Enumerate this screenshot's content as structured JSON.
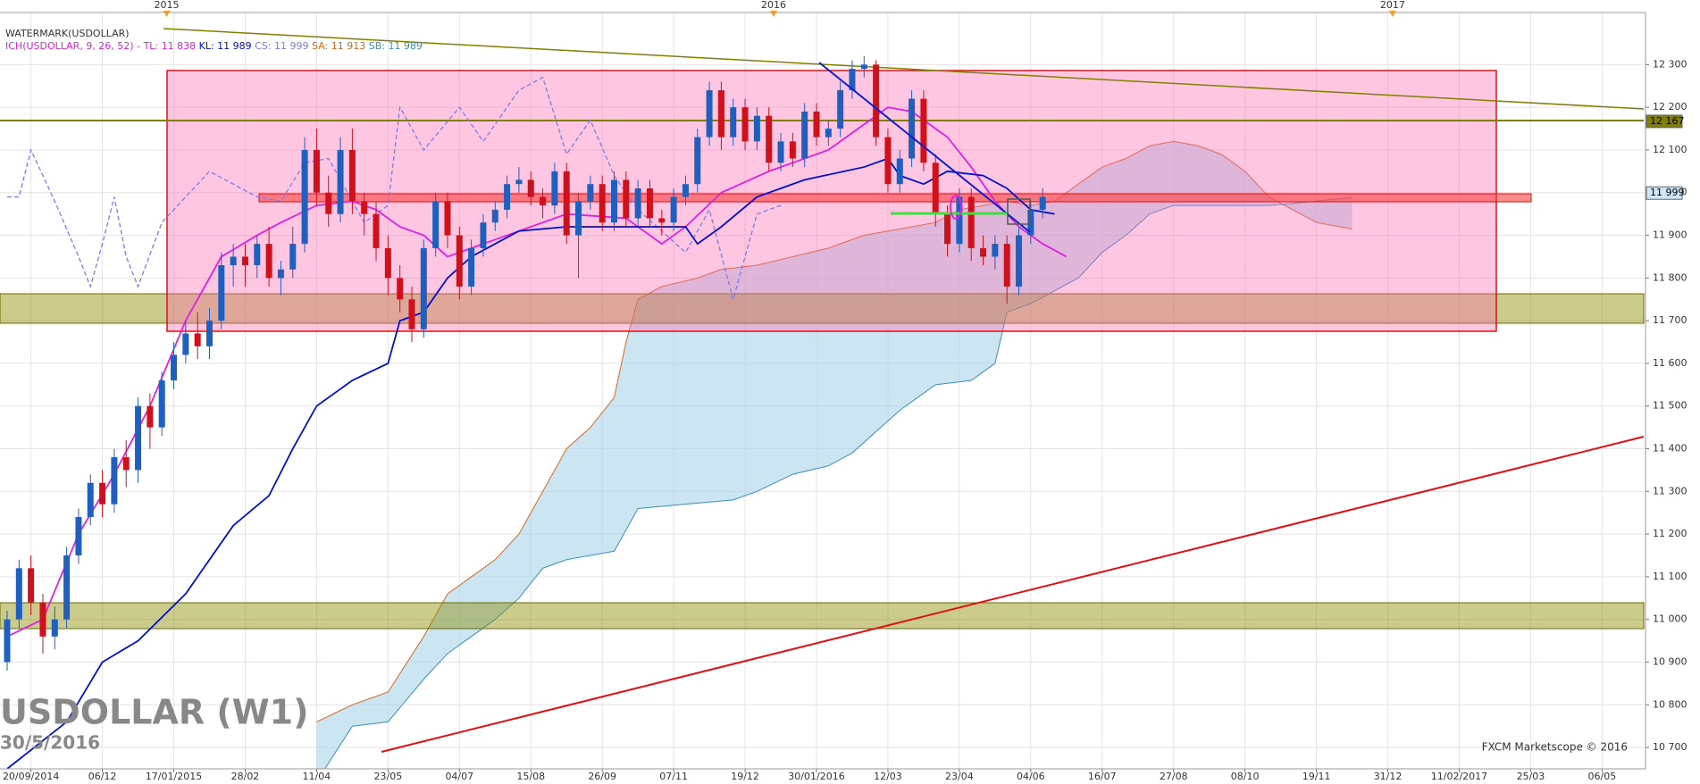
{
  "chart_data": {
    "type": "candlestick",
    "title": "USDOLLAR (W1)",
    "subtitle": "30/5/2016",
    "source": "FXCM Marketscope © 2016",
    "legend": [
      "WATERMARK(USDOLLAR)",
      "ICH(USDOLLAR, 9, 26, 52) -",
      "TL: 11 838",
      "KL: 11 989",
      "CS: 11 999",
      "SA: 11 913",
      "SB: 11 989"
    ],
    "grid": true,
    "xlim": [
      -2.6,
      135.5
    ],
    "xticks": [
      {
        "value": 0,
        "label": "20/09/2014"
      },
      {
        "value": 6,
        "label": "06/12"
      },
      {
        "value": 12,
        "label": "17/01/2015"
      },
      {
        "value": 18,
        "label": "28/02"
      },
      {
        "value": 24,
        "label": "11/04"
      },
      {
        "value": 30,
        "label": "23/05"
      },
      {
        "value": 36,
        "label": "04/07"
      },
      {
        "value": 42,
        "label": "15/08"
      },
      {
        "value": 48,
        "label": "26/09"
      },
      {
        "value": 54,
        "label": "07/11"
      },
      {
        "value": 60,
        "label": "19/12"
      },
      {
        "value": 66,
        "label": "30/01/2016"
      },
      {
        "value": 72,
        "label": "12/03"
      },
      {
        "value": 78,
        "label": "23/04"
      },
      {
        "value": 84,
        "label": "04/06"
      },
      {
        "value": 90,
        "label": "16/07"
      },
      {
        "value": 96,
        "label": "27/08"
      },
      {
        "value": 102,
        "label": "08/10"
      },
      {
        "value": 108,
        "label": "19/11"
      },
      {
        "value": 114,
        "label": "31/12"
      },
      {
        "value": 120,
        "label": "11/02/2017"
      },
      {
        "value": 126,
        "label": "25/03"
      },
      {
        "value": 132,
        "label": "06/05"
      }
    ],
    "year_ticks": [
      {
        "value": 11.4,
        "label": "2015"
      },
      {
        "value": 62.4,
        "label": "2016"
      },
      {
        "value": 114.4,
        "label": "2017"
      }
    ],
    "ylim": [
      10650,
      12420
    ],
    "yticks": [
      {
        "value": 10700,
        "label": "10 700"
      },
      {
        "value": 10800,
        "label": "10 800"
      },
      {
        "value": 10900,
        "label": "10 900"
      },
      {
        "value": 11000,
        "label": "11 000"
      },
      {
        "value": 11100,
        "label": "11 100"
      },
      {
        "value": 11200,
        "label": "11 200"
      },
      {
        "value": 11300,
        "label": "11 300"
      },
      {
        "value": 11400,
        "label": "11 400"
      },
      {
        "value": 11500,
        "label": "11 500"
      },
      {
        "value": 11600,
        "label": "11 600"
      },
      {
        "value": 11700,
        "label": "11 700"
      },
      {
        "value": 11800,
        "label": "11 800"
      },
      {
        "value": 11900,
        "label": "11 900"
      },
      {
        "value": 12000,
        "label": "12 000"
      },
      {
        "value": 12100,
        "label": "12 100"
      },
      {
        "value": 12200,
        "label": "12 200"
      },
      {
        "value": 12300,
        "label": "12 300"
      }
    ],
    "price_markers": [
      {
        "value": 12167,
        "label": "12 167",
        "color": "#808000"
      },
      {
        "value": 11999,
        "label": "11 999",
        "color": "#cfe6f5"
      }
    ],
    "up_color": "#1f5fbf",
    "down_color": "#d0101b",
    "candles": [
      [
        -2,
        10900,
        11020,
        10880,
        11000
      ],
      [
        -1,
        11000,
        11140,
        10980,
        11120
      ],
      [
        0,
        11120,
        11150,
        11010,
        11040
      ],
      [
        1,
        11040,
        11060,
        10920,
        10960
      ],
      [
        2,
        10960,
        11030,
        10930,
        11000
      ],
      [
        3,
        11000,
        11170,
        10980,
        11150
      ],
      [
        4,
        11150,
        11260,
        11130,
        11240
      ],
      [
        5,
        11240,
        11340,
        11220,
        11320
      ],
      [
        6,
        11320,
        11350,
        11240,
        11270
      ],
      [
        7,
        11270,
        11400,
        11250,
        11380
      ],
      [
        8,
        11380,
        11420,
        11310,
        11350
      ],
      [
        9,
        11350,
        11520,
        11320,
        11500
      ],
      [
        10,
        11500,
        11530,
        11400,
        11450
      ],
      [
        11,
        11450,
        11580,
        11430,
        11560
      ],
      [
        12,
        11560,
        11650,
        11540,
        11620
      ],
      [
        13,
        11620,
        11700,
        11600,
        11670
      ],
      [
        14,
        11670,
        11720,
        11610,
        11640
      ],
      [
        15,
        11640,
        11730,
        11610,
        11700
      ],
      [
        16,
        11700,
        11860,
        11680,
        11830
      ],
      [
        17,
        11830,
        11880,
        11780,
        11850
      ],
      [
        18,
        11850,
        11880,
        11780,
        11830
      ],
      [
        19,
        11830,
        11900,
        11800,
        11880
      ],
      [
        20,
        11880,
        11920,
        11780,
        11800
      ],
      [
        21,
        11800,
        11840,
        11760,
        11820
      ],
      [
        22,
        11820,
        11920,
        11800,
        11880
      ],
      [
        23,
        11880,
        12130,
        11860,
        12100
      ],
      [
        24,
        12100,
        12150,
        11970,
        12000
      ],
      [
        25,
        12000,
        12040,
        11920,
        11950
      ],
      [
        26,
        11950,
        12130,
        11930,
        12100
      ],
      [
        27,
        12100,
        12150,
        11950,
        11980
      ],
      [
        28,
        11980,
        12000,
        11900,
        11950
      ],
      [
        29,
        11950,
        11980,
        11840,
        11870
      ],
      [
        30,
        11870,
        11900,
        11760,
        11800
      ],
      [
        31,
        11800,
        11830,
        11720,
        11750
      ],
      [
        32,
        11750,
        11780,
        11650,
        11680
      ],
      [
        33,
        11680,
        11890,
        11660,
        11870
      ],
      [
        34,
        11870,
        12000,
        11850,
        11980
      ],
      [
        35,
        11980,
        12000,
        11870,
        11900
      ],
      [
        36,
        11900,
        11920,
        11750,
        11780
      ],
      [
        37,
        11780,
        11890,
        11760,
        11870
      ],
      [
        38,
        11870,
        11950,
        11850,
        11930
      ],
      [
        39,
        11930,
        11980,
        11910,
        11960
      ],
      [
        40,
        11960,
        12040,
        11940,
        12020
      ],
      [
        41,
        12020,
        12060,
        12000,
        12030
      ],
      [
        42,
        12030,
        12050,
        11970,
        11990
      ],
      [
        43,
        11990,
        12010,
        11940,
        11970
      ],
      [
        44,
        11970,
        12070,
        11950,
        12050
      ],
      [
        45,
        12050,
        12070,
        11880,
        11900
      ],
      [
        46,
        11900,
        12000,
        11800,
        11980
      ],
      [
        47,
        11980,
        12040,
        11960,
        12020
      ],
      [
        48,
        12020,
        12040,
        11910,
        11930
      ],
      [
        49,
        11930,
        12050,
        11910,
        12030
      ],
      [
        50,
        12030,
        12050,
        11920,
        11940
      ],
      [
        51,
        11940,
        12030,
        11920,
        12010
      ],
      [
        52,
        12010,
        12030,
        11920,
        11940
      ],
      [
        53,
        11940,
        11960,
        11900,
        11930
      ],
      [
        54,
        11930,
        12010,
        11910,
        11990
      ],
      [
        55,
        11990,
        12040,
        11970,
        12020
      ],
      [
        56,
        12020,
        12150,
        12000,
        12130
      ],
      [
        57,
        12130,
        12260,
        12110,
        12240
      ],
      [
        58,
        12240,
        12260,
        12100,
        12130
      ],
      [
        59,
        12130,
        12220,
        12110,
        12200
      ],
      [
        60,
        12200,
        12220,
        12100,
        12120
      ],
      [
        61,
        12120,
        12200,
        12100,
        12180
      ],
      [
        62,
        12180,
        12200,
        12050,
        12070
      ],
      [
        63,
        12070,
        12140,
        12050,
        12120
      ],
      [
        64,
        12120,
        12140,
        12060,
        12080
      ],
      [
        65,
        12080,
        12210,
        12060,
        12190
      ],
      [
        66,
        12190,
        12210,
        12110,
        12130
      ],
      [
        67,
        12130,
        12170,
        12110,
        12150
      ],
      [
        68,
        12150,
        12260,
        12130,
        12240
      ],
      [
        69,
        12240,
        12310,
        12220,
        12290
      ],
      [
        70,
        12290,
        12320,
        12270,
        12300
      ],
      [
        71,
        12300,
        12310,
        12110,
        12130
      ],
      [
        72,
        12130,
        12150,
        12000,
        12020
      ],
      [
        73,
        12020,
        12100,
        12000,
        12080
      ],
      [
        74,
        12080,
        12240,
        12060,
        12220
      ],
      [
        75,
        12220,
        12240,
        12050,
        12070
      ],
      [
        76,
        12070,
        12090,
        11920,
        11950
      ],
      [
        77,
        11950,
        11970,
        11850,
        11880
      ],
      [
        78,
        11880,
        12010,
        11860,
        11990
      ],
      [
        79,
        11990,
        12010,
        11840,
        11870
      ],
      [
        80,
        11870,
        11900,
        11830,
        11850
      ],
      [
        81,
        11850,
        11900,
        11820,
        11880
      ],
      [
        82,
        11880,
        11900,
        11740,
        11780
      ],
      [
        83,
        11780,
        11920,
        11760,
        11900
      ],
      [
        84,
        11900,
        11980,
        11880,
        11960
      ],
      [
        85,
        11960,
        12010,
        11940,
        11990
      ]
    ],
    "cloud": {
      "color": "#a8d4ea",
      "senkou_a": {
        "color": "#d2691e",
        "x": [
          24,
          27,
          30,
          33,
          35,
          37,
          39,
          41,
          43,
          45,
          47,
          49,
          50,
          51,
          53,
          56,
          58,
          61,
          64,
          67,
          70,
          72,
          74,
          76,
          78,
          80,
          82,
          84,
          86,
          88,
          90,
          92,
          94,
          96,
          98,
          100,
          102,
          104,
          106,
          108,
          110,
          111
        ],
        "values": [
          10760,
          10800,
          10830,
          10960,
          11060,
          11100,
          11140,
          11200,
          11300,
          11400,
          11450,
          11520,
          11650,
          11750,
          11780,
          11800,
          11820,
          11830,
          11850,
          11870,
          11900,
          11910,
          11920,
          11930,
          11960,
          11970,
          11980,
          11970,
          11980,
          12020,
          12060,
          12080,
          12110,
          12120,
          12110,
          12090,
          12050,
          11990,
          11960,
          11930,
          11920,
          11915
        ]
      },
      "senkou_b": {
        "color": "#3a8fc0",
        "x": [
          24,
          27,
          30,
          33,
          35,
          37,
          39,
          41,
          43,
          45,
          47,
          49,
          51,
          55,
          59,
          61,
          64,
          67,
          69,
          71,
          73,
          76,
          79,
          81,
          82,
          84,
          86,
          88,
          90,
          92,
          94,
          96,
          100,
          104,
          108,
          111
        ],
        "values": [
          10620,
          10750,
          10760,
          10860,
          10920,
          10960,
          11000,
          11050,
          11120,
          11140,
          11150,
          11160,
          11260,
          11270,
          11280,
          11300,
          11340,
          11360,
          11390,
          11440,
          11490,
          11550,
          11560,
          11600,
          11720,
          11740,
          11770,
          11800,
          11860,
          11900,
          11950,
          11970,
          11970,
          11970,
          11980,
          11989
        ]
      }
    },
    "lines": [
      {
        "color": "#7b7bf0",
        "dash": true,
        "x": [
          -2,
          -1,
          0,
          2,
          4,
          5,
          6,
          7,
          8,
          9,
          11,
          13,
          15,
          17,
          19,
          21,
          23,
          25,
          28,
          30,
          31,
          33,
          36,
          38,
          41,
          43,
          45,
          47,
          49,
          51,
          53,
          55,
          57,
          59,
          61,
          63
        ],
        "values": [
          11990,
          11990,
          12100,
          11980,
          11850,
          11780,
          11880,
          11990,
          11850,
          11780,
          11930,
          11990,
          12050,
          12020,
          11990,
          11980,
          12070,
          12080,
          11930,
          11970,
          12200,
          12100,
          12200,
          12120,
          12240,
          12270,
          12090,
          12170,
          12040,
          11960,
          11910,
          11860,
          11960,
          11750,
          11950,
          11970
        ]
      },
      {
        "color": "#e020e0",
        "dash": false,
        "x": [
          -2,
          1,
          4,
          7,
          10,
          13,
          16,
          19,
          21,
          24,
          27,
          29,
          31,
          33,
          35,
          37,
          40,
          45,
          50,
          53,
          55,
          58,
          62,
          67,
          70,
          72,
          74,
          77,
          79,
          81,
          83,
          85,
          87
        ],
        "values": [
          10960,
          11000,
          11200,
          11340,
          11500,
          11700,
          11850,
          11900,
          11930,
          11970,
          11980,
          11960,
          11920,
          11900,
          11850,
          11870,
          11900,
          11950,
          11940,
          11880,
          11920,
          12000,
          12050,
          12100,
          12160,
          12200,
          12190,
          12130,
          12060,
          11980,
          11920,
          11880,
          11850
        ]
      },
      {
        "color": "#0010d0",
        "dash": false,
        "x": [
          -2,
          3,
          6,
          9,
          13,
          17,
          20,
          22,
          24,
          27,
          30,
          31,
          33,
          35,
          37,
          39,
          41,
          45,
          55,
          56,
          58,
          61,
          65,
          70,
          72,
          73,
          75,
          77,
          80,
          82,
          84,
          86
        ],
        "values": [
          10650,
          10760,
          10900,
          10950,
          11060,
          11220,
          11290,
          11400,
          11500,
          11560,
          11600,
          11700,
          11720,
          11800,
          11850,
          11880,
          11910,
          11920,
          11920,
          11880,
          11920,
          11990,
          12030,
          12060,
          12080,
          12040,
          12020,
          12050,
          12040,
          12010,
          11960,
          11950
        ]
      }
    ]
  }
}
